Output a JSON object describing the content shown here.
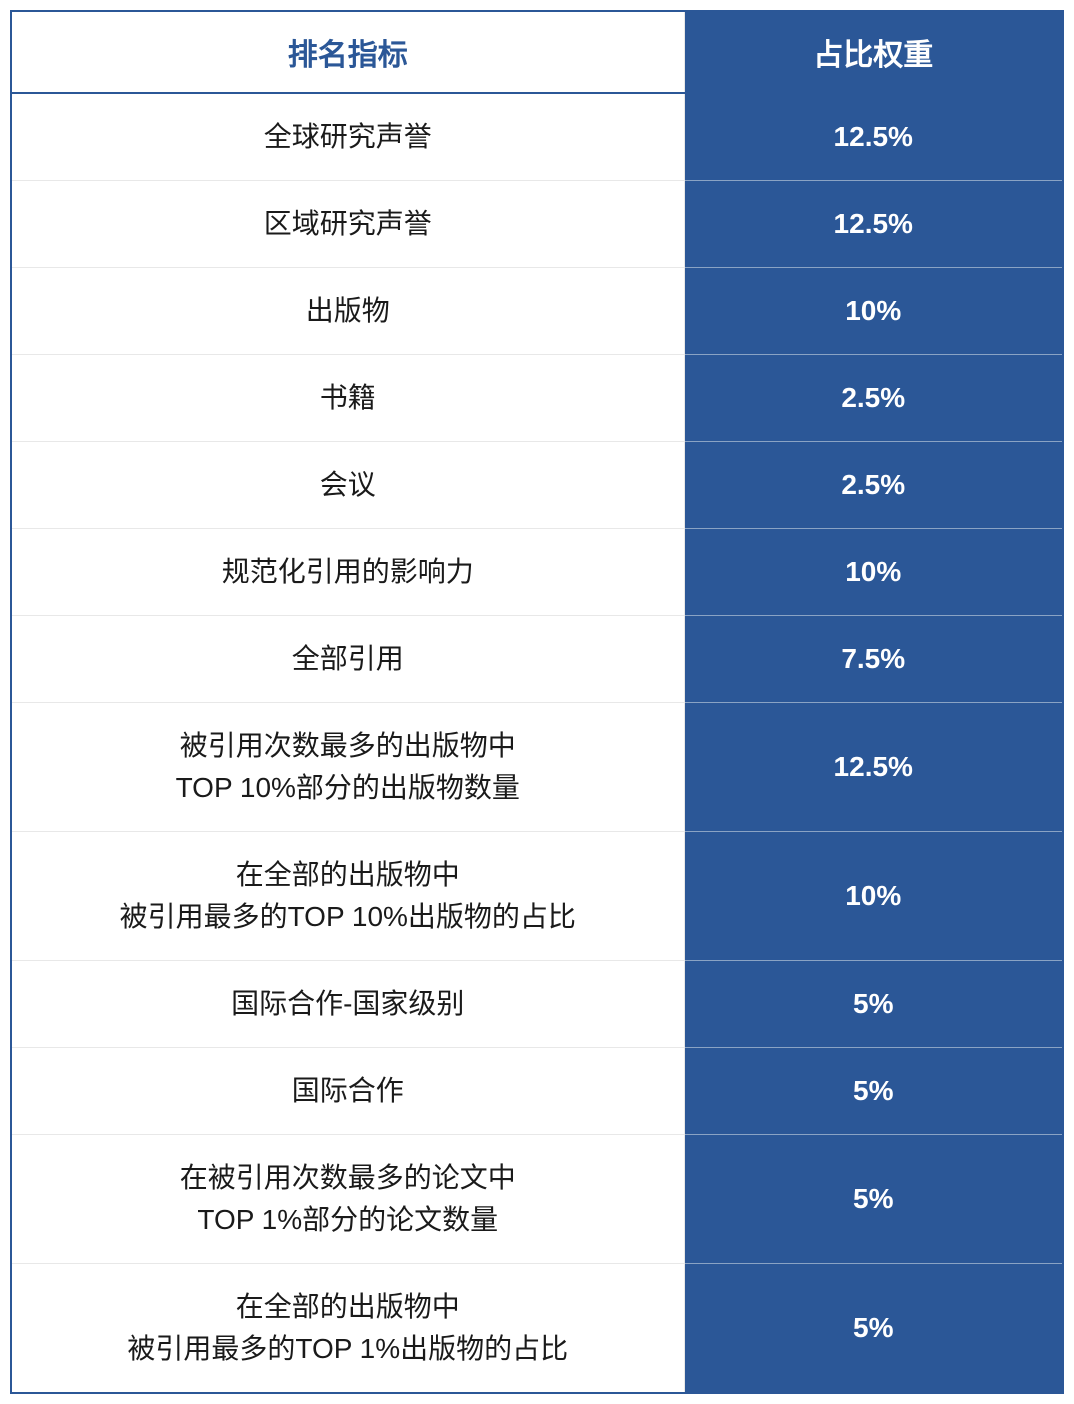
{
  "table": {
    "type": "table",
    "columns": [
      {
        "key": "indicator",
        "label": "排名指标",
        "header_bg": "#ffffff",
        "header_color": "#2b5797",
        "cell_bg": "#ffffff",
        "cell_color": "#1a1a1a",
        "width_pct": 64
      },
      {
        "key": "weight",
        "label": "占比权重",
        "header_bg": "#2b5797",
        "header_color": "#ffffff",
        "cell_bg": "#2b5797",
        "cell_color": "#ffffff",
        "width_pct": 36
      }
    ],
    "rows": [
      {
        "indicator": "全球研究声誉",
        "weight": "12.5%"
      },
      {
        "indicator": "区域研究声誉",
        "weight": "12.5%"
      },
      {
        "indicator": "出版物",
        "weight": "10%"
      },
      {
        "indicator": "书籍",
        "weight": "2.5%"
      },
      {
        "indicator": "会议",
        "weight": "2.5%"
      },
      {
        "indicator": "规范化引用的影响力",
        "weight": "10%"
      },
      {
        "indicator": "全部引用",
        "weight": "7.5%"
      },
      {
        "indicator": "被引用次数最多的出版物中\nTOP 10%部分的出版物数量",
        "weight": "12.5%"
      },
      {
        "indicator": "在全部的出版物中\n被引用最多的TOP 10%出版物的占比",
        "weight": "10%"
      },
      {
        "indicator": "国际合作-国家级别",
        "weight": "5%"
      },
      {
        "indicator": "国际合作",
        "weight": "5%"
      },
      {
        "indicator": "在被引用次数最多的论文中\nTOP 1%部分的论文数量",
        "weight": "5%"
      },
      {
        "indicator": "在全部的出版物中\n被引用最多的TOP 1%出版物的占比",
        "weight": "5%"
      }
    ],
    "styling": {
      "outer_border_color": "#2b5797",
      "outer_border_width": 2,
      "header_border_bottom_color": "#2b5797",
      "header_border_bottom_width": 2,
      "indicator_row_divider_color": "#e8e8e8",
      "weight_row_divider_color": "#8aa3c4",
      "header_fontsize": 30,
      "cell_fontsize": 28,
      "header_fontweight": "bold",
      "weight_fontweight": "bold",
      "font_family": "PingFang SC, Microsoft YaHei, sans-serif",
      "line_height": 1.5,
      "cell_padding_v": 22,
      "cell_padding_h": 12
    }
  }
}
